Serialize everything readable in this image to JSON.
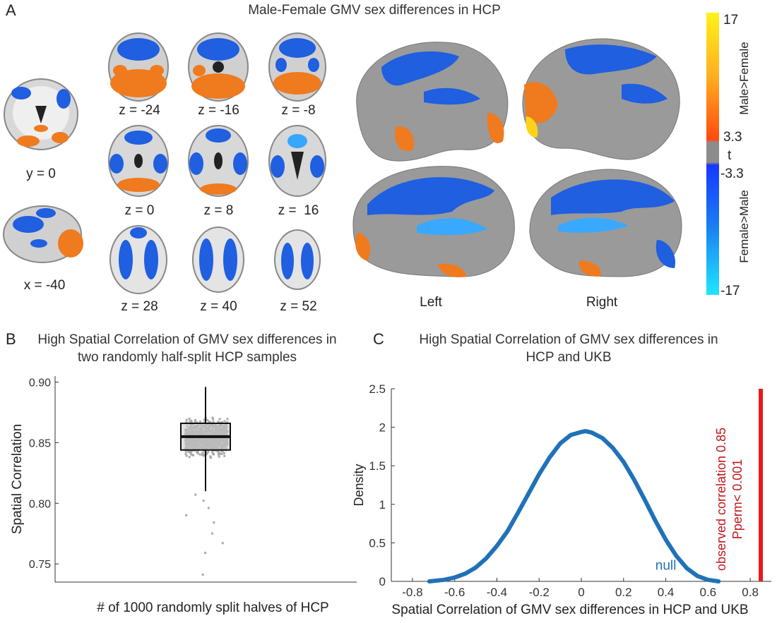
{
  "panel_a": {
    "letter": "A",
    "title": "Male-Female GMV sex differences in HCP",
    "slice_labels": {
      "coronal": "y = 0",
      "sagittal": "x = -40",
      "z_m24": "z = -24",
      "z_m16": "z = -16",
      "z_m8": "z = -8",
      "z_0": "z = 0",
      "z_8": "z = 8",
      "z_16": "z =  16",
      "z_28": "z = 28",
      "z_40": "z = 40",
      "z_52": "z = 52"
    },
    "surface_labels": {
      "left": "Left",
      "right": "Right"
    },
    "colorbar": {
      "max": "17",
      "pos_threshold": "3.3",
      "t_label": "t",
      "neg_threshold": "-3.3",
      "min": "-17",
      "positive_label": "Male>Female",
      "negative_label": "Female>Male"
    },
    "colors": {
      "male_gt_female": "#f07a1e",
      "female_gt_male": "#1f5fe0",
      "cortex": "#9a9a9a"
    }
  },
  "panel_b": {
    "letter": "B",
    "chart_data": {
      "type": "box",
      "title": "High Spatial Correlation of GMV sex differences in two randomly half-split HCP samples",
      "title_line1": "High Spatial Correlation of GMV sex differences in",
      "title_line2": "two randomly half-split HCP samples",
      "xlabel": "# of 1000 randomly split halves of HCP",
      "ylabel": "Spatial Correlation",
      "ylim": [
        0.735,
        0.905
      ],
      "yticks": [
        0.75,
        0.8,
        0.85,
        0.9
      ],
      "ytick_labels": [
        "0.75",
        "0.80",
        "0.85",
        "0.90"
      ],
      "n_samples": 1000,
      "box": {
        "whisker_low": 0.81,
        "q1": 0.844,
        "median": 0.855,
        "q3": 0.866,
        "whisker_high": 0.896
      },
      "outliers": [
        0.808,
        0.803,
        0.797,
        0.791,
        0.785,
        0.776,
        0.768,
        0.76,
        0.742
      ]
    }
  },
  "panel_c": {
    "letter": "C",
    "chart_data": {
      "type": "line",
      "title": "High Spatial Correlation of GMV sex differences in HCP and UKB",
      "title_line1": "High Spatial Correlation of GMV sex differences in",
      "title_line2": "HCP and UKB",
      "xlabel": "Spatial Correlation of GMV sex differences in HCP and UKB",
      "ylabel": "Density",
      "xlim": [
        -0.9,
        0.9
      ],
      "ylim": [
        0,
        2.5
      ],
      "xticks": [
        -0.8,
        -0.6,
        -0.4,
        -0.2,
        0,
        0.2,
        0.4,
        0.6,
        0.8
      ],
      "xtick_labels": [
        "-0.8",
        "-0.6",
        "-0.4",
        "-0.2",
        "0",
        "0.2",
        "0.4",
        "0.6",
        "0.8"
      ],
      "yticks": [
        0,
        0.5,
        1,
        1.5,
        2,
        2.5
      ],
      "ytick_labels": [
        "0",
        "0.5",
        "1",
        "1.5",
        "2",
        "2.5"
      ],
      "series": [
        {
          "name": "null",
          "color": "#1f72b8",
          "x": [
            -0.72,
            -0.65,
            -0.6,
            -0.55,
            -0.5,
            -0.45,
            -0.4,
            -0.35,
            -0.3,
            -0.25,
            -0.2,
            -0.15,
            -0.1,
            -0.05,
            0,
            0.02,
            0.05,
            0.1,
            0.15,
            0.2,
            0.25,
            0.3,
            0.35,
            0.4,
            0.45,
            0.5,
            0.55,
            0.6,
            0.65
          ],
          "y": [
            0.0,
            0.02,
            0.05,
            0.1,
            0.18,
            0.3,
            0.46,
            0.65,
            0.89,
            1.14,
            1.39,
            1.61,
            1.79,
            1.9,
            1.94,
            1.95,
            1.93,
            1.86,
            1.73,
            1.55,
            1.32,
            1.06,
            0.79,
            0.54,
            0.33,
            0.17,
            0.07,
            0.02,
            0.0
          ]
        }
      ],
      "observed": {
        "x": 0.85,
        "color": "#e8191d",
        "label_line1": "observed correlation 0.85",
        "label_line2": "Pperm< 0.001"
      }
    }
  }
}
